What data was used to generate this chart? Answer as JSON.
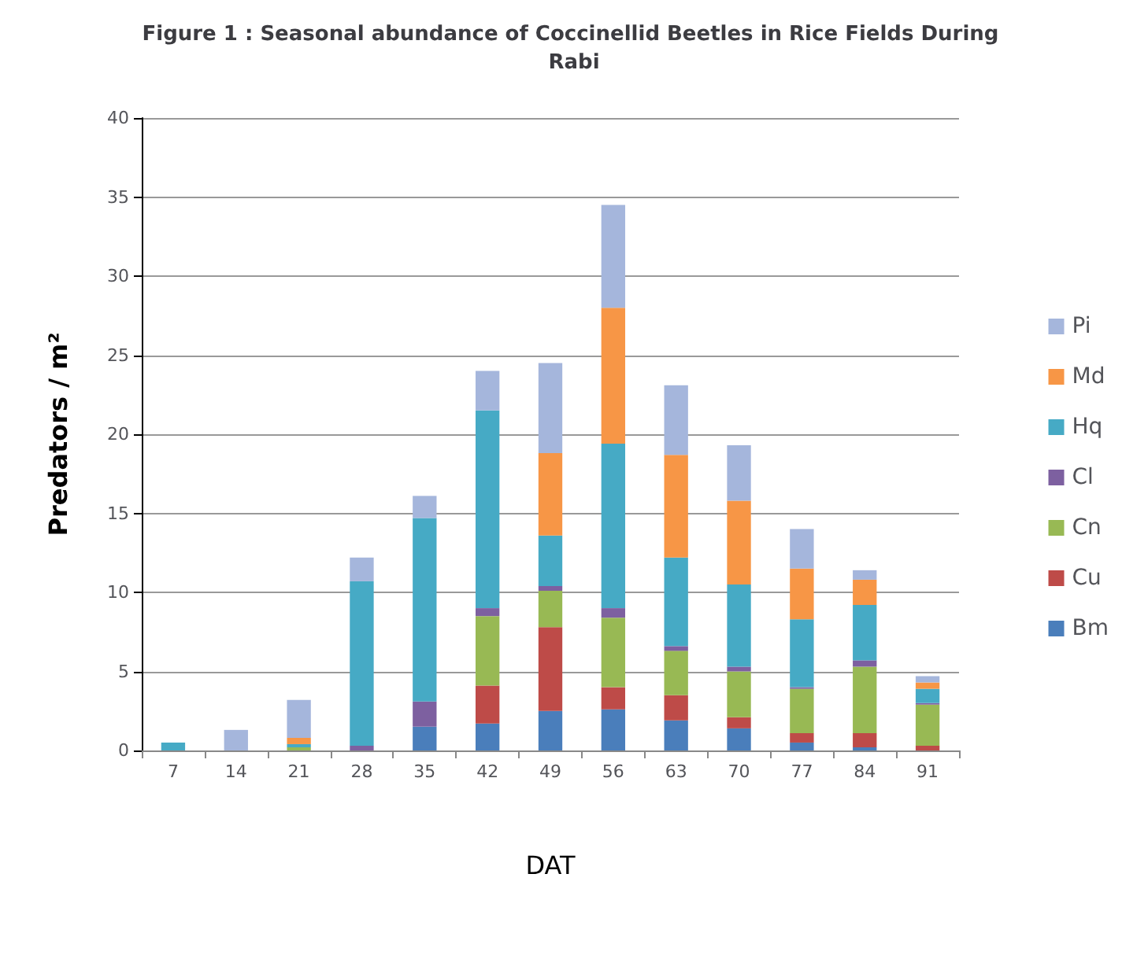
{
  "chart_data": {
    "type": "bar",
    "title": "Figure 1 : Seasonal abundance of Coccinellid Beetles in Rice Fields During Rabi",
    "xlabel": "DAT",
    "ylabel": "Predators / m²",
    "stacked": true,
    "grid": "y",
    "legend": "right",
    "categories": [
      "7",
      "14",
      "21",
      "28",
      "35",
      "42",
      "49",
      "56",
      "63",
      "70",
      "77",
      "84",
      "91"
    ],
    "ylim": [
      0,
      40
    ],
    "yticks": [
      0,
      5,
      10,
      15,
      20,
      25,
      30,
      35,
      40
    ],
    "series": [
      {
        "name": "Bm",
        "color": "#4a7ebb",
        "values": [
          0,
          0,
          0,
          0,
          1.5,
          1.7,
          2.5,
          2.6,
          1.9,
          1.4,
          0.5,
          0.2,
          0
        ]
      },
      {
        "name": "Cu",
        "color": "#be4b48",
        "values": [
          0,
          0,
          0,
          0,
          0,
          2.4,
          5.3,
          1.4,
          1.6,
          0.7,
          0.6,
          0.9,
          0.3
        ]
      },
      {
        "name": "Cn",
        "color": "#98b954",
        "values": [
          0,
          0,
          0.2,
          0,
          0,
          4.4,
          2.3,
          4.4,
          2.8,
          2.9,
          2.8,
          4.2,
          2.6
        ]
      },
      {
        "name": "Cl",
        "color": "#7d60a0",
        "values": [
          0,
          0,
          0,
          0.3,
          1.6,
          0.5,
          0.3,
          0.6,
          0.3,
          0.3,
          0.1,
          0.4,
          0.1
        ]
      },
      {
        "name": "Hq",
        "color": "#46aac5",
        "values": [
          0.5,
          0,
          0.2,
          10.4,
          11.6,
          12.5,
          3.2,
          10.4,
          5.6,
          5.2,
          4.3,
          3.5,
          0.9
        ]
      },
      {
        "name": "Md",
        "color": "#f79646",
        "values": [
          0,
          0,
          0.4,
          0,
          0,
          0,
          5.2,
          8.6,
          6.5,
          5.3,
          3.2,
          1.6,
          0.4
        ]
      },
      {
        "name": "Pi",
        "color": "#a5b6dc",
        "values": [
          0,
          1.3,
          2.4,
          1.5,
          1.4,
          2.5,
          5.7,
          6.5,
          4.4,
          3.5,
          2.5,
          0.6,
          0.4
        ]
      }
    ]
  }
}
